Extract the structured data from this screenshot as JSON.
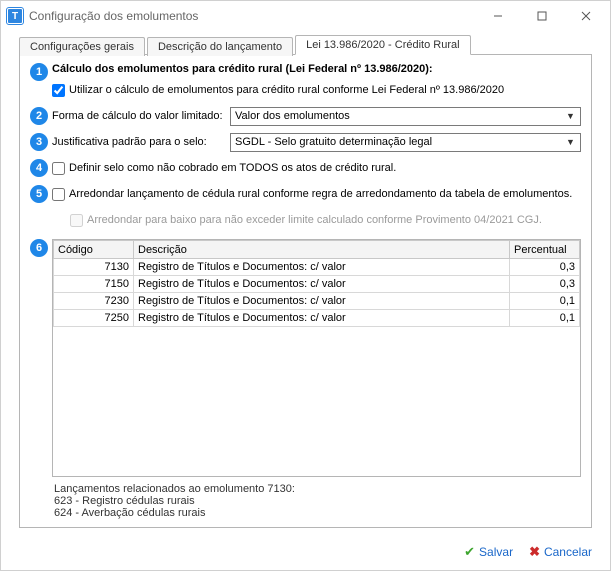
{
  "window": {
    "title": "Configuração dos emolumentos",
    "app_icon_letter": "T"
  },
  "tabs": [
    {
      "label": "Configurações gerais",
      "active": false
    },
    {
      "label": "Descrição do lançamento",
      "active": false
    },
    {
      "label": "Lei 13.986/2020 - Crédito Rural",
      "active": true
    }
  ],
  "heading": "Cálculo dos emolumentos para crédito rural (Lei Federal nº 13.986/2020):",
  "checkbox_main": {
    "label": "Utilizar o cálculo de emolumentos para crédito rural conforme Lei Federal nº 13.986/2020",
    "checked": true
  },
  "combo1": {
    "label": "Forma de cálculo do valor limitado:",
    "value": "Valor dos emolumentos"
  },
  "combo2": {
    "label": "Justificativa padrão para o selo:",
    "value": "SGDL - Selo gratuito determinação legal"
  },
  "checkbox_selo_nao_cobrado": {
    "label": "Definir selo como não cobrado em TODOS os atos de crédito rural.",
    "checked": false
  },
  "checkbox_arredondar": {
    "label": "Arredondar lançamento de cédula rural conforme regra de arredondamento da tabela de emolumentos.",
    "checked": false
  },
  "checkbox_arredondar_baixo": {
    "label": "Arredondar para baixo para não exceder limite calculado conforme Provimento 04/2021 CGJ.",
    "checked": false,
    "disabled": true
  },
  "table": {
    "columns": {
      "code": "Código",
      "desc": "Descrição",
      "pct": "Percentual"
    },
    "rows": [
      {
        "code": "7130",
        "desc": "Registro de Títulos e Documentos: c/ valor",
        "pct": "0,3"
      },
      {
        "code": "7150",
        "desc": "Registro de Títulos e Documentos: c/ valor",
        "pct": "0,3"
      },
      {
        "code": "7230",
        "desc": "Registro de Títulos e Documentos: c/ valor",
        "pct": "0,1"
      },
      {
        "code": "7250",
        "desc": "Registro de Títulos e Documentos: c/ valor",
        "pct": "0,1"
      }
    ]
  },
  "related": {
    "title": "Lançamentos relacionados ao emolumento 7130:",
    "lines": [
      "623 - Registro cédulas rurais",
      "624 - Averbação cédulas rurais"
    ]
  },
  "footer": {
    "save": "Salvar",
    "cancel": "Cancelar"
  },
  "badges": [
    "1",
    "2",
    "3",
    "4",
    "5",
    "6"
  ],
  "colors": {
    "badge_bg": "#1f87e8",
    "border": "#b5b5b5",
    "link": "#1a67c9",
    "save_icon": "#3da52e",
    "cancel_icon": "#cc2b2b"
  }
}
